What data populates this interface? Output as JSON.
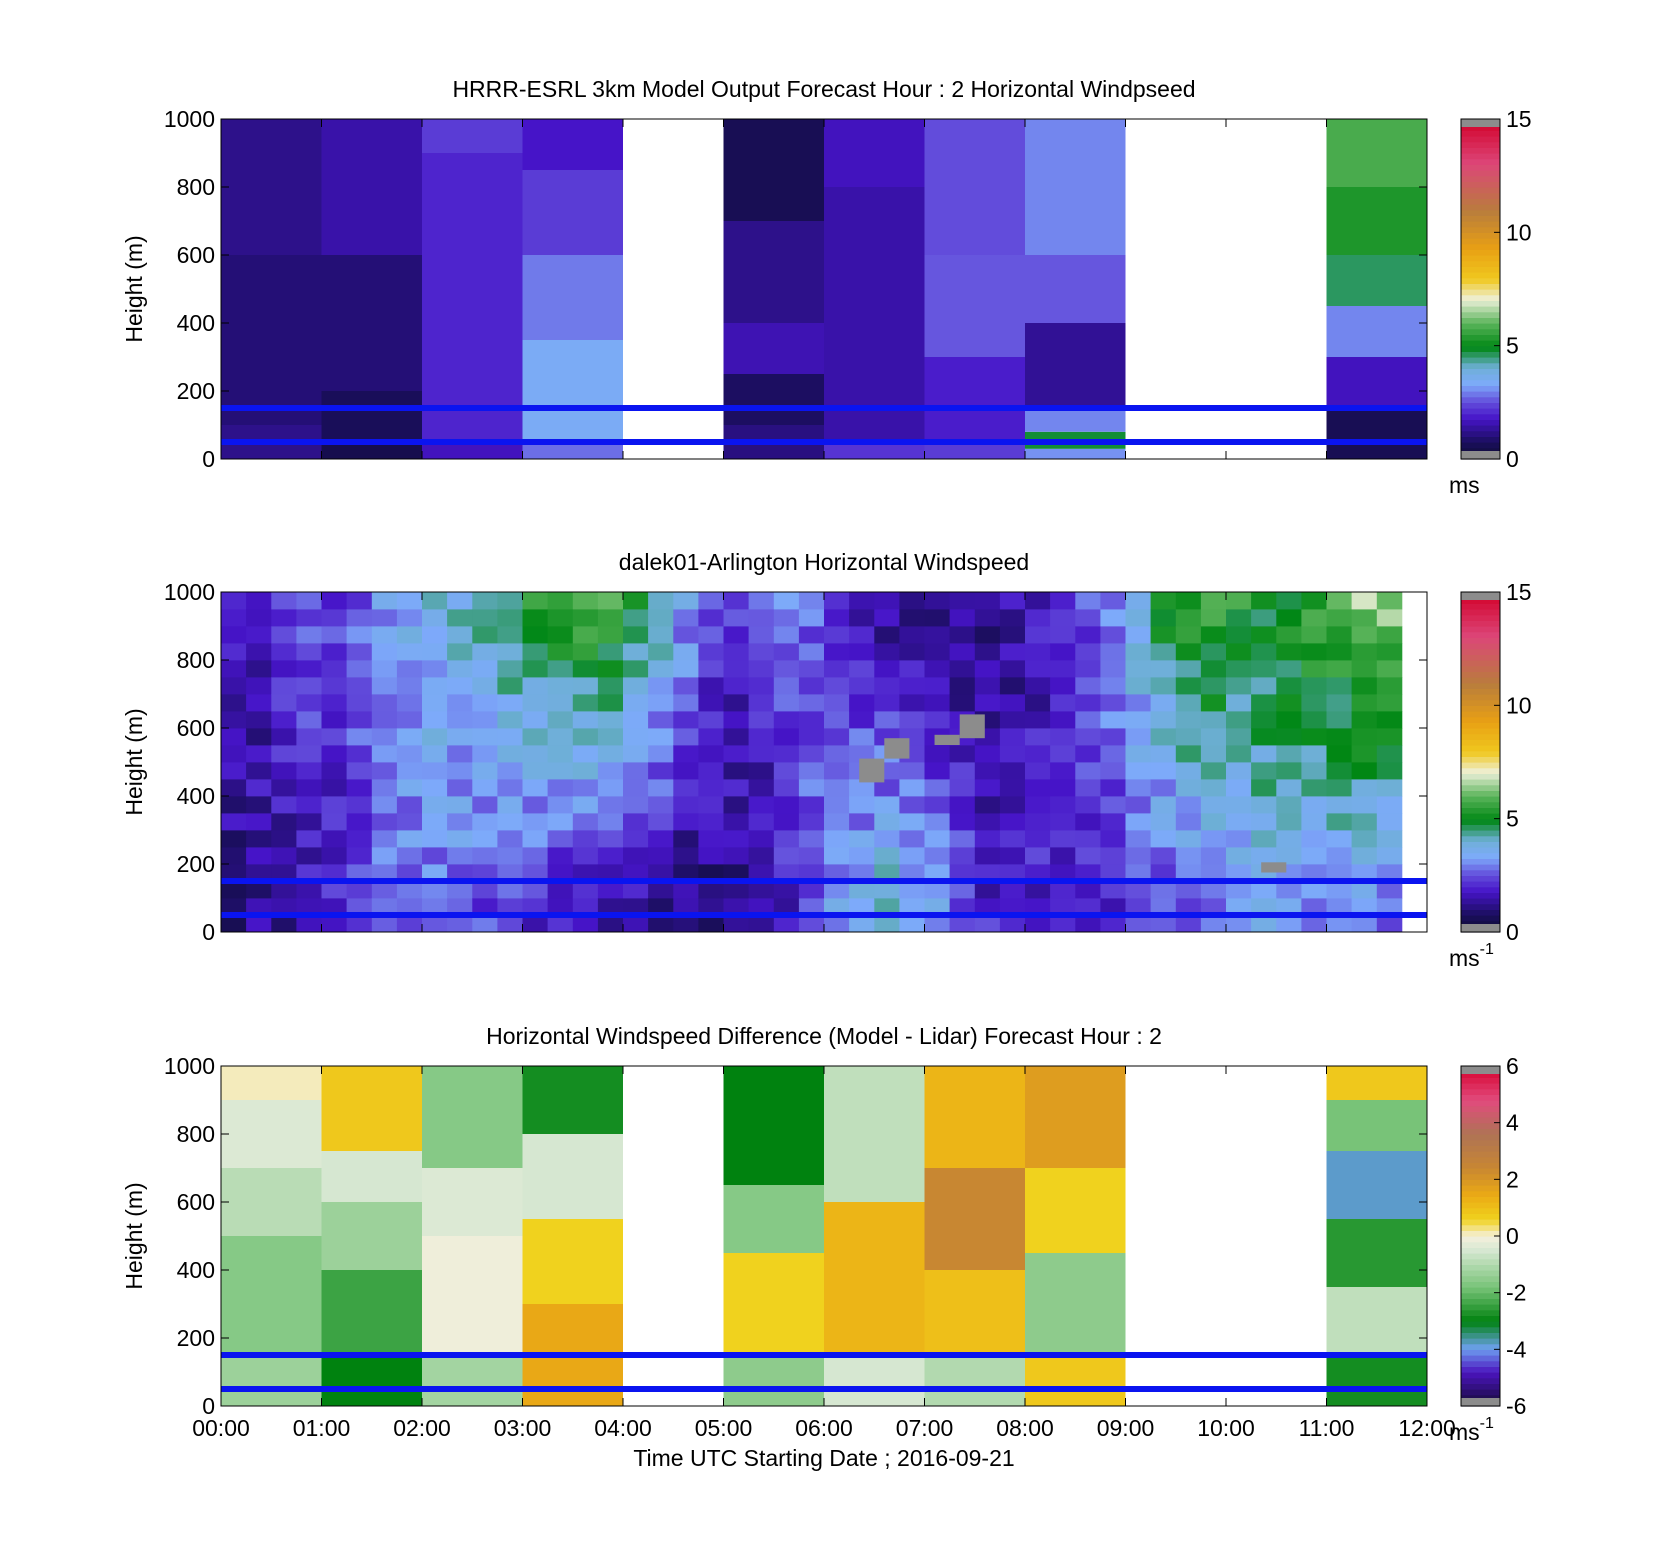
{
  "figure": {
    "xlabel": "Time UTC  Starting Date ; 2016-09-21"
  },
  "chart_data": [
    {
      "type": "heatmap",
      "title": "HRRR-ESRL 3km Model Output   Forecast Hour : 2 Horizontal Windpseed",
      "xlabel": "",
      "ylabel": "Height (m)",
      "x_categories": [
        "00:00",
        "01:00",
        "02:00",
        "03:00",
        "04:00",
        "05:00",
        "06:00",
        "07:00",
        "08:00",
        "09:00",
        "10:00",
        "11:00",
        "12:00"
      ],
      "xlim_hours": [
        0,
        12
      ],
      "ylim": [
        0,
        1000
      ],
      "yticks": [
        0,
        200,
        400,
        600,
        800,
        1000
      ],
      "colorbar": {
        "min": 0,
        "max": 15,
        "ticks": [
          0,
          5,
          10,
          15
        ],
        "unit": "ms"
      },
      "reference_lines_m": [
        150,
        50
      ],
      "columns": [
        {
          "start_hour": 0,
          "end_hour": 1,
          "bands": [
            {
              "from": 0,
              "to": 100,
              "value": 1.2
            },
            {
              "from": 100,
              "to": 600,
              "value": 1.0
            },
            {
              "from": 600,
              "to": 1000,
              "value": 1.2
            }
          ]
        },
        {
          "start_hour": 1,
          "end_hour": 2,
          "bands": [
            {
              "from": 0,
              "to": 50,
              "value": 0.5
            },
            {
              "from": 50,
              "to": 200,
              "value": 0.7
            },
            {
              "from": 200,
              "to": 600,
              "value": 1.0
            },
            {
              "from": 600,
              "to": 1000,
              "value": 1.5
            }
          ]
        },
        {
          "start_hour": 2,
          "end_hour": 3,
          "bands": [
            {
              "from": 0,
              "to": 50,
              "value": 1.7
            },
            {
              "from": 50,
              "to": 900,
              "value": 2.0
            },
            {
              "from": 900,
              "to": 1000,
              "value": 2.3
            }
          ]
        },
        {
          "start_hour": 3,
          "end_hour": 4,
          "bands": [
            {
              "from": 0,
              "to": 50,
              "value": 2.8
            },
            {
              "from": 50,
              "to": 350,
              "value": 3.4
            },
            {
              "from": 350,
              "to": 600,
              "value": 2.9
            },
            {
              "from": 600,
              "to": 850,
              "value": 2.3
            },
            {
              "from": 850,
              "to": 1000,
              "value": 1.8
            }
          ]
        },
        {
          "start_hour": 5,
          "end_hour": 6,
          "bands": [
            {
              "from": 0,
              "to": 100,
              "value": 1.1
            },
            {
              "from": 100,
              "to": 250,
              "value": 0.8
            },
            {
              "from": 250,
              "to": 400,
              "value": 1.6
            },
            {
              "from": 400,
              "to": 700,
              "value": 1.2
            },
            {
              "from": 700,
              "to": 1000,
              "value": 0.6
            }
          ]
        },
        {
          "start_hour": 6,
          "end_hour": 7,
          "bands": [
            {
              "from": 0,
              "to": 50,
              "value": 2.2
            },
            {
              "from": 50,
              "to": 800,
              "value": 1.5
            },
            {
              "from": 800,
              "to": 1000,
              "value": 1.7
            }
          ]
        },
        {
          "start_hour": 7,
          "end_hour": 8,
          "bands": [
            {
              "from": 0,
              "to": 50,
              "value": 2.3
            },
            {
              "from": 50,
              "to": 300,
              "value": 1.9
            },
            {
              "from": 300,
              "to": 600,
              "value": 2.6
            },
            {
              "from": 600,
              "to": 1000,
              "value": 2.5
            }
          ]
        },
        {
          "start_hour": 8,
          "end_hour": 9,
          "bands": [
            {
              "from": 0,
              "to": 30,
              "value": 3.1
            },
            {
              "from": 30,
              "to": 80,
              "value": 4.8
            },
            {
              "from": 80,
              "to": 150,
              "value": 3.0
            },
            {
              "from": 150,
              "to": 400,
              "value": 1.3
            },
            {
              "from": 400,
              "to": 600,
              "value": 2.6
            },
            {
              "from": 600,
              "to": 1000,
              "value": 3.0
            }
          ]
        },
        {
          "start_hour": 11,
          "end_hour": 12,
          "bands": [
            {
              "from": 0,
              "to": 150,
              "value": 0.6
            },
            {
              "from": 150,
              "to": 300,
              "value": 1.7
            },
            {
              "from": 300,
              "to": 450,
              "value": 3.0
            },
            {
              "from": 450,
              "to": 600,
              "value": 4.6
            },
            {
              "from": 600,
              "to": 800,
              "value": 5.3
            },
            {
              "from": 800,
              "to": 1000,
              "value": 5.8
            }
          ]
        }
      ]
    },
    {
      "type": "heatmap",
      "title": "dalek01-Arlington  Horizontal Windspeed",
      "xlabel": "",
      "ylabel": "Height (m)",
      "xlim_hours": [
        0,
        12
      ],
      "ylim": [
        0,
        1000
      ],
      "yticks": [
        0,
        200,
        400,
        600,
        800,
        1000
      ],
      "colorbar": {
        "min": 0,
        "max": 15,
        "ticks": [
          0,
          5,
          10,
          15
        ],
        "unit": "ms",
        "unit_sup": "-1"
      },
      "reference_lines_m": [
        150,
        50
      ],
      "profile_interval_hours": 0.25,
      "last_profile_end_hour": 11.8,
      "profiles_low": [
        1.2,
        1.3,
        1.4,
        1.6,
        1.9,
        2.2,
        2.5,
        2.7,
        2.8,
        2.6,
        2.3,
        2.0,
        1.8,
        1.5,
        1.3,
        1.1,
        1.0,
        0.9,
        0.8,
        0.9,
        1.0,
        1.2,
        1.8,
        2.6,
        3.3,
        3.8,
        4.2,
        4.0,
        3.4,
        2.6,
        2.0,
        1.8,
        2.0,
        2.2,
        2.0,
        1.9,
        2.0,
        2.1,
        2.3,
        2.6,
        2.9,
        3.2,
        3.2,
        3.0,
        2.8,
        2.6,
        2.5
      ],
      "profiles_high": [
        1.6,
        1.8,
        2.2,
        2.5,
        2.2,
        2.6,
        3.2,
        3.6,
        3.8,
        4.0,
        4.3,
        4.8,
        5.3,
        5.6,
        5.8,
        5.6,
        5.2,
        4.5,
        3.5,
        2.6,
        2.2,
        2.4,
        2.8,
        2.6,
        2.0,
        1.5,
        1.2,
        1.0,
        1.0,
        1.1,
        1.2,
        1.4,
        1.6,
        1.8,
        2.4,
        3.2,
        4.2,
        5.0,
        5.5,
        5.6,
        5.4,
        5.2,
        5.3,
        5.6,
        6.0,
        6.6,
        6.4
      ],
      "missing_cells": [
        {
          "start_hour": 6.35,
          "end_hour": 6.6,
          "from": 440,
          "to": 510
        },
        {
          "start_hour": 6.6,
          "end_hour": 6.85,
          "from": 510,
          "to": 570
        },
        {
          "start_hour": 7.1,
          "end_hour": 7.35,
          "from": 550,
          "to": 580
        },
        {
          "start_hour": 7.35,
          "end_hour": 7.6,
          "from": 570,
          "to": 640
        },
        {
          "start_hour": 10.35,
          "end_hour": 10.6,
          "from": 175,
          "to": 205
        }
      ]
    },
    {
      "type": "heatmap",
      "title": "Horizontal Windspeed Difference (Model - Lidar) Forecast Hour : 2",
      "xlabel": "Time UTC  Starting Date ; 2016-09-21",
      "ylabel": "Height (m)",
      "x_categories": [
        "00:00",
        "01:00",
        "02:00",
        "03:00",
        "04:00",
        "05:00",
        "06:00",
        "07:00",
        "08:00",
        "09:00",
        "10:00",
        "11:00",
        "12:00"
      ],
      "xlim_hours": [
        0,
        12
      ],
      "ylim": [
        0,
        1000
      ],
      "yticks": [
        0,
        200,
        400,
        600,
        800,
        1000
      ],
      "colorbar": {
        "min": -6,
        "max": 6,
        "ticks": [
          -6,
          -4,
          -2,
          0,
          2,
          4,
          6
        ],
        "unit": "ms",
        "unit_sup": "-1"
      },
      "reference_lines_m": [
        150,
        50
      ],
      "columns": [
        {
          "start_hour": 0,
          "end_hour": 1,
          "bands": [
            {
              "from": 0,
              "to": 150,
              "value": -1.3
            },
            {
              "from": 150,
              "to": 500,
              "value": -1.6
            },
            {
              "from": 500,
              "to": 700,
              "value": -0.9
            },
            {
              "from": 700,
              "to": 900,
              "value": -0.4
            },
            {
              "from": 900,
              "to": 1000,
              "value": 0.1
            }
          ]
        },
        {
          "start_hour": 1,
          "end_hour": 2,
          "bands": [
            {
              "from": 0,
              "to": 150,
              "value": -3.0
            },
            {
              "from": 150,
              "to": 400,
              "value": -2.4
            },
            {
              "from": 400,
              "to": 600,
              "value": -1.3
            },
            {
              "from": 600,
              "to": 750,
              "value": -0.5
            },
            {
              "from": 750,
              "to": 1000,
              "value": 0.8
            }
          ]
        },
        {
          "start_hour": 2,
          "end_hour": 3,
          "bands": [
            {
              "from": 0,
              "to": 150,
              "value": -1.2
            },
            {
              "from": 150,
              "to": 500,
              "value": -0.1
            },
            {
              "from": 500,
              "to": 700,
              "value": -0.4
            },
            {
              "from": 700,
              "to": 1000,
              "value": -1.6
            }
          ]
        },
        {
          "start_hour": 3,
          "end_hour": 4,
          "bands": [
            {
              "from": 0,
              "to": 300,
              "value": 1.5
            },
            {
              "from": 300,
              "to": 550,
              "value": 0.6
            },
            {
              "from": 550,
              "to": 800,
              "value": -0.5
            },
            {
              "from": 800,
              "to": 1000,
              "value": -2.8
            }
          ]
        },
        {
          "start_hour": 5,
          "end_hour": 6,
          "bands": [
            {
              "from": 0,
              "to": 150,
              "value": -1.5
            },
            {
              "from": 150,
              "to": 450,
              "value": 0.6
            },
            {
              "from": 450,
              "to": 650,
              "value": -1.6
            },
            {
              "from": 650,
              "to": 1000,
              "value": -3.0
            }
          ]
        },
        {
          "start_hour": 6,
          "end_hour": 7,
          "bands": [
            {
              "from": 0,
              "to": 150,
              "value": -0.5
            },
            {
              "from": 150,
              "to": 600,
              "value": 1.2
            },
            {
              "from": 600,
              "to": 1000,
              "value": -0.8
            }
          ]
        },
        {
          "start_hour": 7,
          "end_hour": 8,
          "bands": [
            {
              "from": 0,
              "to": 150,
              "value": -1.0
            },
            {
              "from": 150,
              "to": 400,
              "value": 1.0
            },
            {
              "from": 400,
              "to": 700,
              "value": 2.4
            },
            {
              "from": 700,
              "to": 1000,
              "value": 1.2
            }
          ]
        },
        {
          "start_hour": 8,
          "end_hour": 9,
          "bands": [
            {
              "from": 0,
              "to": 150,
              "value": 0.8
            },
            {
              "from": 150,
              "to": 450,
              "value": -1.5
            },
            {
              "from": 450,
              "to": 700,
              "value": 0.6
            },
            {
              "from": 700,
              "to": 1000,
              "value": 1.8
            }
          ]
        },
        {
          "start_hour": 11,
          "end_hour": 12,
          "bands": [
            {
              "from": 0,
              "to": 150,
              "value": -2.8
            },
            {
              "from": 150,
              "to": 350,
              "value": -0.8
            },
            {
              "from": 350,
              "to": 550,
              "value": -2.6
            },
            {
              "from": 550,
              "to": 750,
              "value": -3.8
            },
            {
              "from": 750,
              "to": 900,
              "value": -1.8
            },
            {
              "from": 900,
              "to": 1000,
              "value": 0.8
            }
          ]
        }
      ]
    }
  ]
}
